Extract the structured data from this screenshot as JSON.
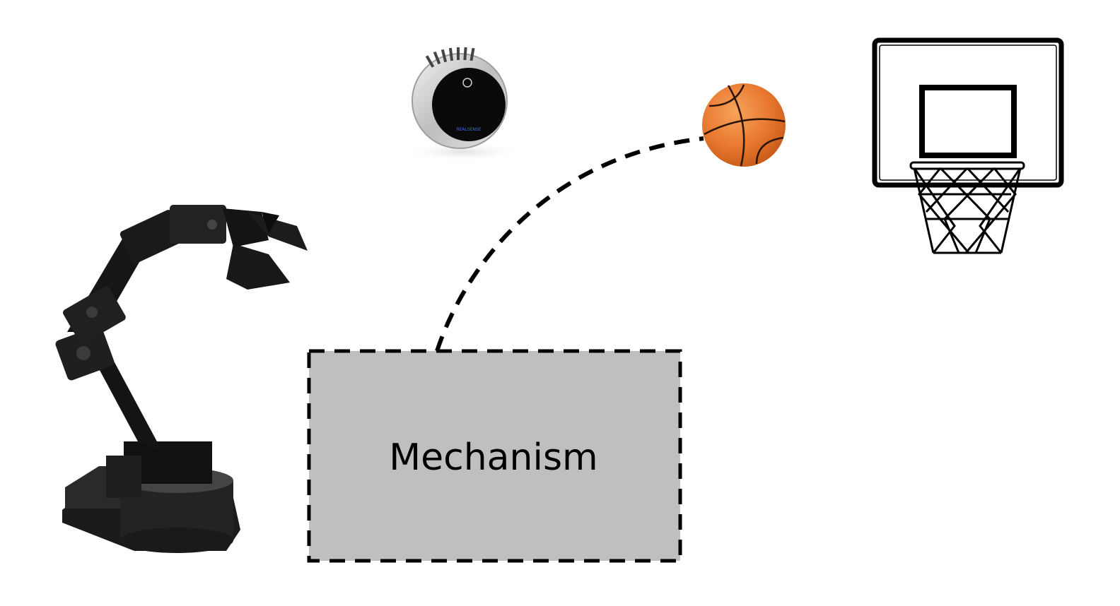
{
  "diagram": {
    "mechanism_box": {
      "label": "Mechanism",
      "fill_color": "#bfbfbf",
      "border_color": "#000000"
    },
    "camera": {
      "icon": "depth-camera-icon",
      "brand_text": "REALSENSE"
    },
    "basketball": {
      "icon": "basketball-icon",
      "color": "#e8772e"
    },
    "hoop": {
      "icon": "basketball-hoop-icon"
    },
    "robot_arm": {
      "icon": "robot-arm-icon",
      "color": "#1a1a1a"
    },
    "trajectory": {
      "style": "dashed",
      "color": "#000000"
    }
  }
}
